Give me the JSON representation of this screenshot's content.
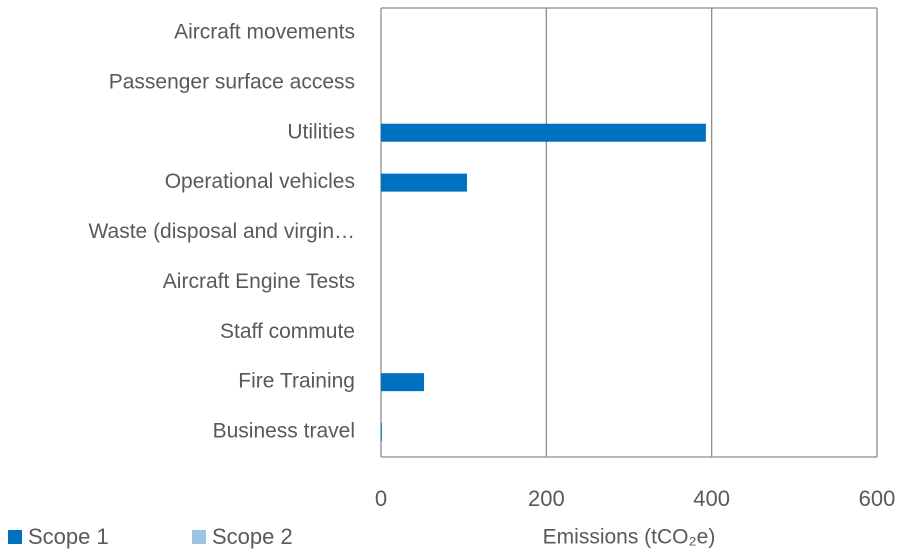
{
  "chart_data": {
    "type": "hbar",
    "categories": [
      "Aircraft movements",
      "Passenger surface access",
      "Utilities",
      "Operational vehicles",
      "Waste (disposal and virgin…",
      "Aircraft Engine Tests",
      "Staff commute",
      "Fire Training",
      "Business travel"
    ],
    "series": [
      {
        "name": "Scope 1",
        "color": "#0070c0",
        "values": [
          0,
          0,
          393,
          104,
          0,
          0,
          0,
          52,
          1
        ]
      },
      {
        "name": "Scope 2",
        "color": "#9dc3e6",
        "values": [
          0,
          0,
          0,
          0,
          0,
          0,
          0,
          0,
          0
        ]
      }
    ],
    "xlabel": "Emissions (tCO₂e)",
    "xlim": [
      0,
      600
    ],
    "xticks": [
      0,
      200,
      400,
      600
    ],
    "grid": true,
    "legend": "bottom-left"
  }
}
